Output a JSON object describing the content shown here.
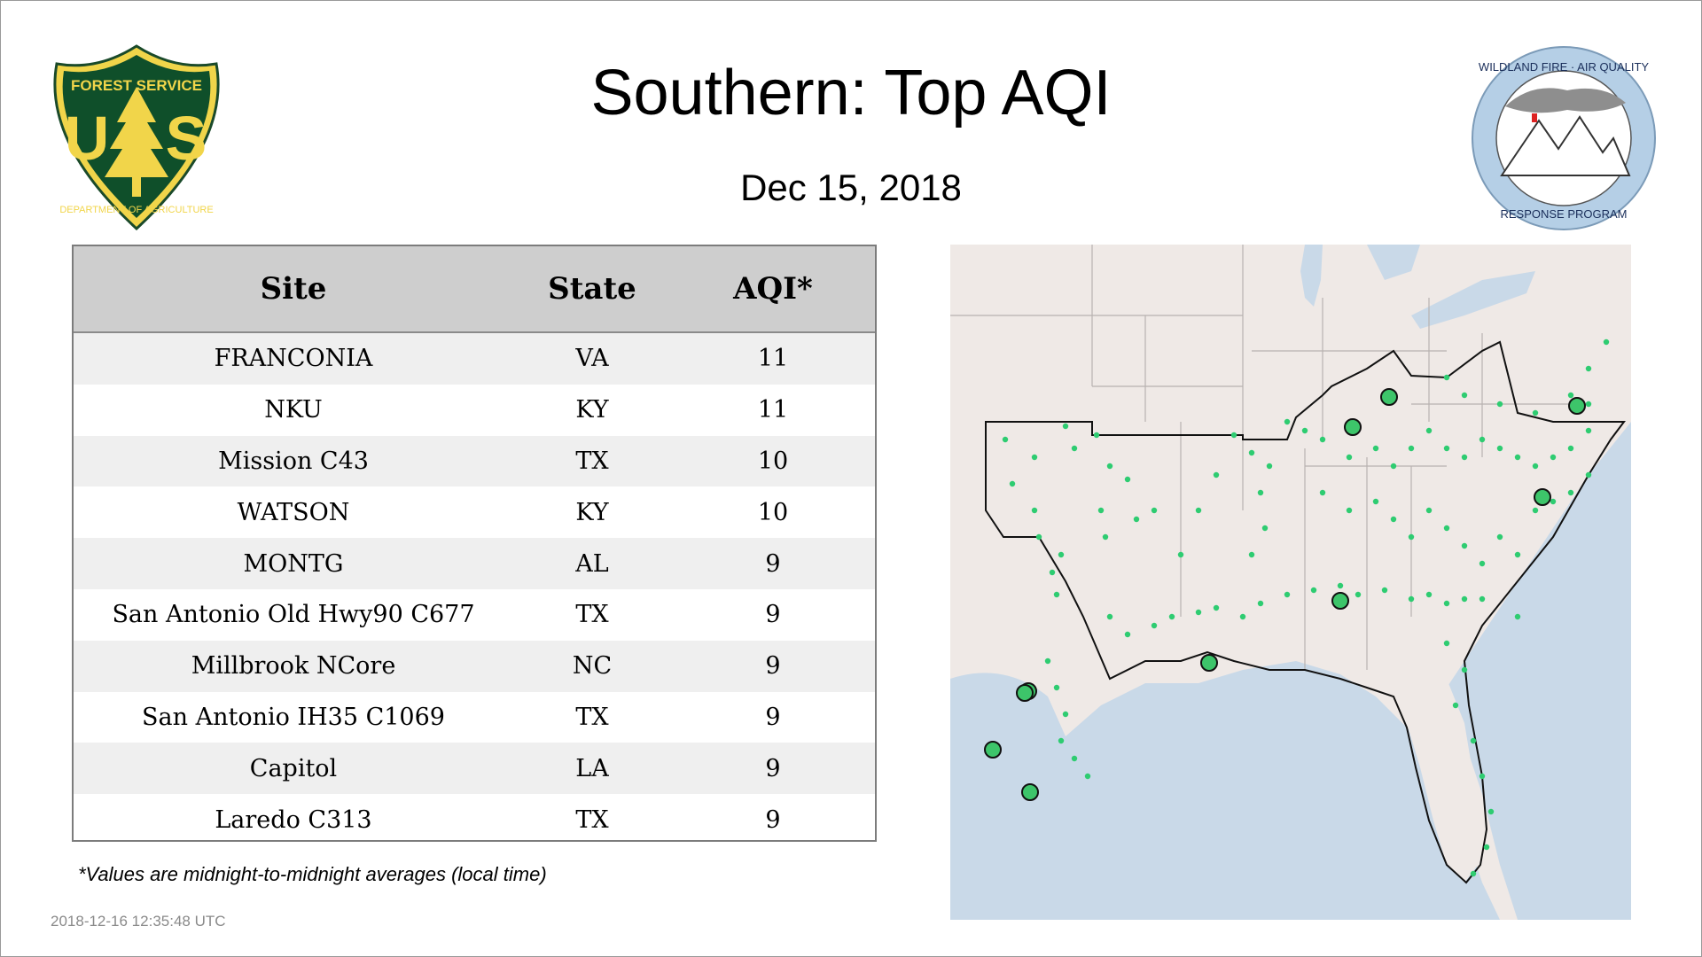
{
  "title": "Southern: Top AQI",
  "date": "Dec 15, 2018",
  "logos": {
    "forest_service": {
      "top_text": "FOREST SERVICE",
      "left_letter": "U",
      "right_letter": "S",
      "bottom_text": "DEPARTMENT OF AGRICULTURE"
    },
    "wildland_fire": {
      "top_text": "WILDLAND FIRE · AIR QUALITY",
      "bottom_text": "RESPONSE PROGRAM"
    }
  },
  "table": {
    "headers": {
      "site": "Site",
      "state": "State",
      "aqi": "AQI*"
    },
    "rows": [
      {
        "site": "FRANCONIA",
        "state": "VA",
        "aqi": "11"
      },
      {
        "site": "NKU",
        "state": "KY",
        "aqi": "11"
      },
      {
        "site": "Mission C43",
        "state": "TX",
        "aqi": "10"
      },
      {
        "site": "WATSON",
        "state": "KY",
        "aqi": "10"
      },
      {
        "site": "MONTG",
        "state": "AL",
        "aqi": "9"
      },
      {
        "site": "San Antonio Old Hwy90 C677",
        "state": "TX",
        "aqi": "9"
      },
      {
        "site": "Millbrook NCore",
        "state": "NC",
        "aqi": "9"
      },
      {
        "site": "San Antonio IH35 C1069",
        "state": "TX",
        "aqi": "9"
      },
      {
        "site": "Capitol",
        "state": "LA",
        "aqi": "9"
      },
      {
        "site": "Laredo C313",
        "state": "TX",
        "aqi": "9"
      }
    ]
  },
  "footnote": "*Values are midnight-to-midnight averages (local time)",
  "timestamp": "2018-12-16 12:35:48 UTC",
  "colors": {
    "site_dot": "#2ecc71",
    "top_site_dot": "#3dc56a",
    "water": "#c9d9e8",
    "land": "#efe9e6",
    "header_bg": "#cecece"
  }
}
